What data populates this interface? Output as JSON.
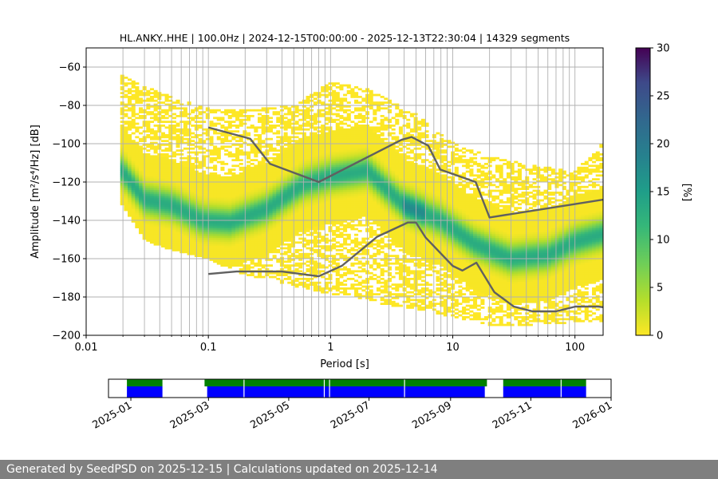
{
  "chart_data": [
    {
      "type": "heatmap",
      "title": "HL.ANKY..HHE | 100.0Hz | 2024-12-15T00:00:00 - 2025-12-13T22:30:04 | 14329 segments",
      "xlabel": "Period [s]",
      "ylabel": "Amplitude [m²/s⁴/Hz] [dB]",
      "x_scale": "log",
      "xlim": [
        0.01,
        170
      ],
      "ylim": [
        -200,
        -50
      ],
      "x_tick_labels": [
        "0.01",
        "0.1",
        "1",
        "10",
        "100"
      ],
      "x_tick_values": [
        0.01,
        0.1,
        1,
        10,
        100
      ],
      "y_tick_values": [
        -200,
        -180,
        -160,
        -140,
        -120,
        -100,
        -80,
        -60
      ],
      "y_tick_labels": [
        "−200",
        "−180",
        "−160",
        "−140",
        "−120",
        "−100",
        "−80",
        "−60"
      ],
      "grid": true,
      "colormap": "viridis_r",
      "colorbar": {
        "label": "[%]",
        "range": [
          0,
          30
        ],
        "ticks": [
          0,
          5,
          10,
          15,
          20,
          25,
          30
        ]
      },
      "mode_curve": {
        "period": [
          0.019,
          0.03,
          0.05,
          0.09,
          0.15,
          0.3,
          0.6,
          1.0,
          2.0,
          4.0,
          8.0,
          15,
          30,
          60,
          100,
          170
        ],
        "db": [
          -113,
          -129,
          -132,
          -140,
          -141,
          -134,
          -121,
          -117,
          -114,
          -132,
          -140,
          -152,
          -160,
          -158,
          -151,
          -147
        ]
      },
      "density_envelope": {
        "period": [
          0.019,
          0.03,
          0.05,
          0.1,
          0.2,
          0.5,
          1.0,
          2.0,
          5.0,
          10,
          20,
          50,
          100,
          170
        ],
        "upper_db": [
          -64,
          -70,
          -76,
          -82,
          -83,
          -80,
          -68,
          -72,
          -85,
          -100,
          -107,
          -112,
          -115,
          -100
        ],
        "lower_db": [
          -130,
          -150,
          -155,
          -160,
          -168,
          -174,
          -178,
          -182,
          -186,
          -190,
          -194,
          -195,
          -193,
          -192
        ]
      },
      "nhnm": {
        "period": [
          0.1,
          0.22,
          0.32,
          0.8,
          3.8,
          4.6,
          6.3,
          7.9,
          15.4,
          20,
          354.8
        ],
        "db": [
          -91.5,
          -97.4,
          -110.5,
          -120,
          -98,
          -96.5,
          -101,
          -113.5,
          -120,
          -138.5,
          -126
        ]
      },
      "nlnm": {
        "period": [
          0.1,
          0.17,
          0.4,
          0.8,
          1.24,
          2.4,
          4.3,
          5.0,
          6.0,
          10,
          12,
          15.6,
          21.9,
          31.6,
          45,
          70,
          101,
          154,
          328,
          600
        ],
        "db": [
          -168,
          -166.7,
          -166.7,
          -169.2,
          -163.7,
          -148.6,
          -141.1,
          -141.1,
          -149,
          -163.8,
          -166.2,
          -162.1,
          -177.5,
          -185,
          -187.5,
          -187.5,
          -185,
          -185,
          -187.5,
          -184.4
        ]
      }
    },
    {
      "type": "timeline",
      "xlim": [
        "2024-12-15",
        "2026-01-01"
      ],
      "x_tick_labels": [
        "2025-01",
        "2025-03",
        "2025-05",
        "2025-07",
        "2025-09",
        "2025-11",
        "2026-01"
      ],
      "x_tick_dates": [
        "2025-01-01",
        "2025-03-01",
        "2025-05-01",
        "2025-07-01",
        "2025-09-01",
        "2025-11-01",
        "2026-01-01"
      ],
      "colors": {
        "upper": "#008000",
        "lower": "#0000ff"
      },
      "upper_segments": [
        [
          "2024-12-29",
          "2025-01-25"
        ],
        [
          "2025-02-26",
          "2025-09-29"
        ],
        [
          "2025-10-11",
          "2025-12-13"
        ]
      ],
      "lower_segments": [
        [
          "2024-12-29",
          "2025-01-25"
        ],
        [
          "2025-02-28",
          "2025-09-27"
        ],
        [
          "2025-10-11",
          "2025-12-13"
        ]
      ],
      "gaps": [
        "2025-03-28",
        "2025-05-28",
        "2025-06-01",
        "2025-07-28",
        "2025-09-29",
        "2025-10-01",
        "2025-11-24"
      ]
    }
  ],
  "footer": {
    "text": "Generated by SeedPSD on 2025-12-15 | Calculations updated on 2025-12-14"
  },
  "style": {
    "grid_color": "#b0b0b0",
    "curve_color": "#606060",
    "footer_bg": "#7f7f7f"
  }
}
